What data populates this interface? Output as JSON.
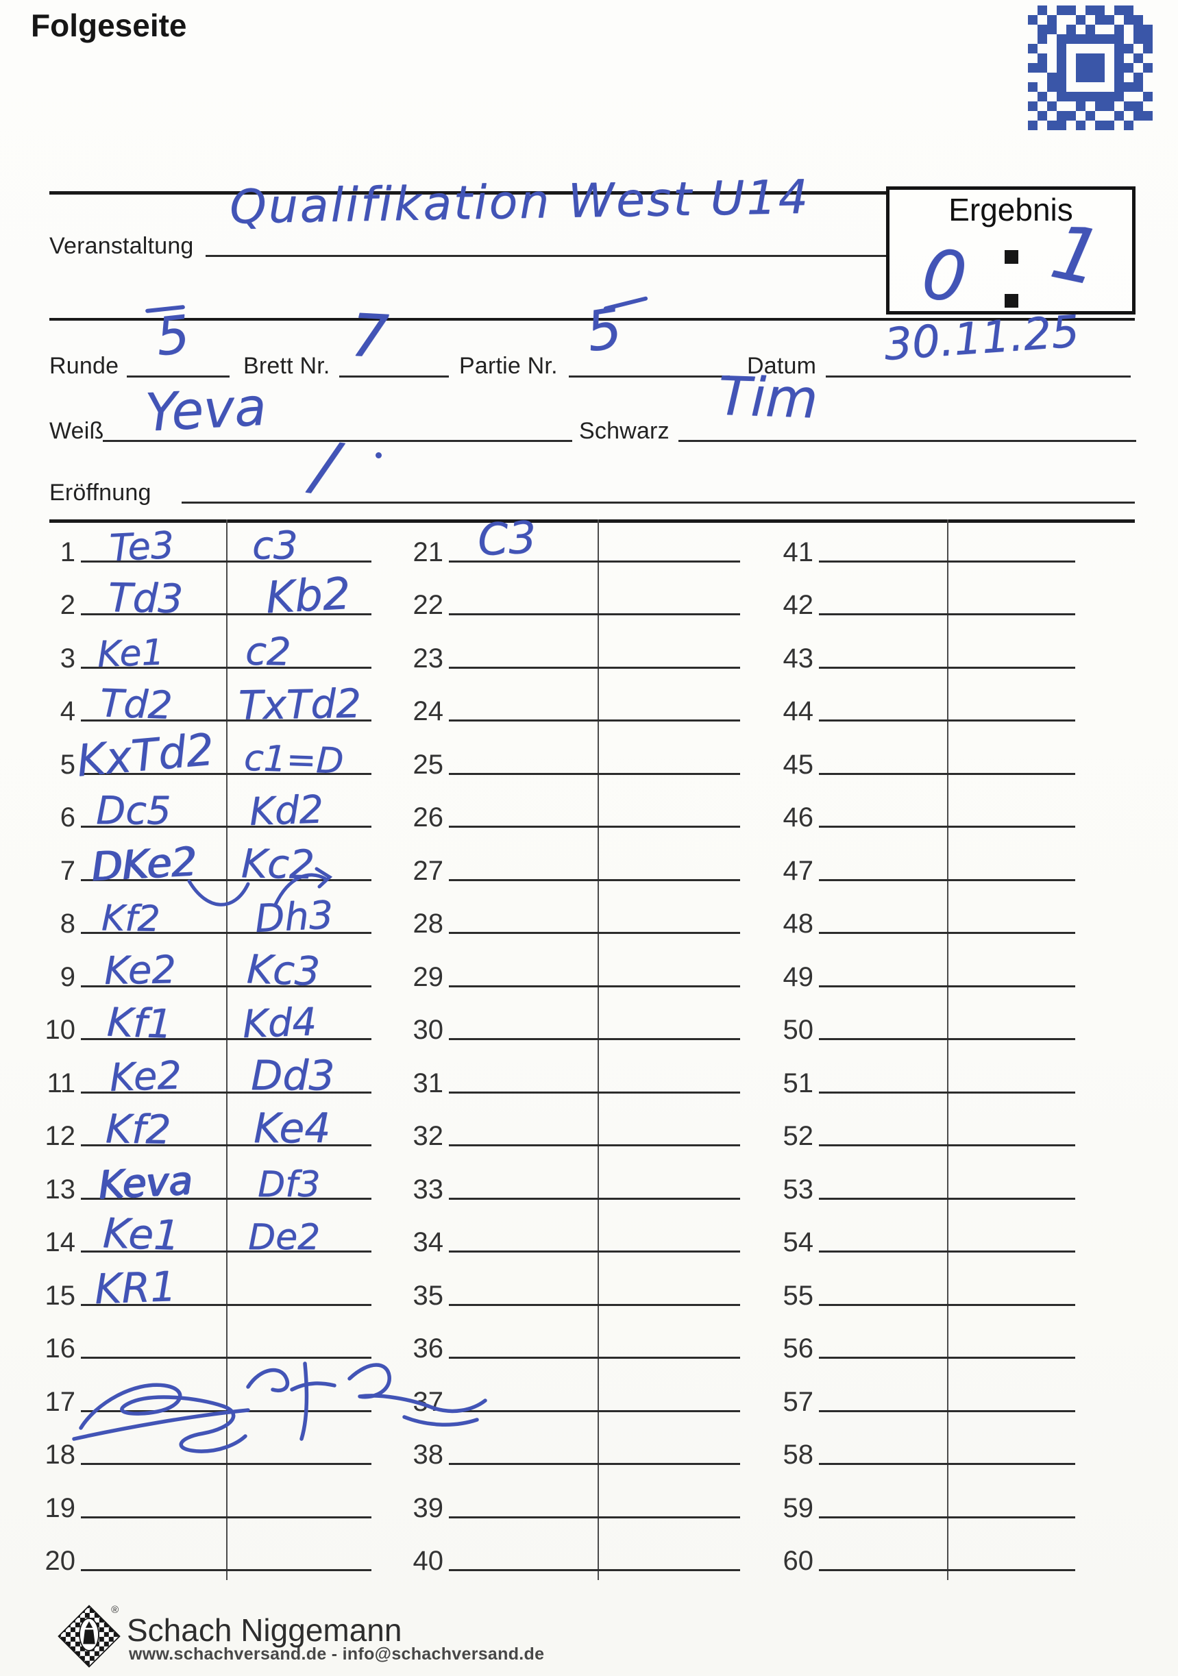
{
  "page": {
    "title": "Folgeseite"
  },
  "header": {
    "event_label": "Veranstaltung",
    "event_value": "Qualifikation West U14",
    "result_label": "Ergebnis",
    "result_white": "0",
    "result_black": "1",
    "round_label": "Runde",
    "round_value": "5",
    "board_label": "Brett Nr.",
    "board_value": "7",
    "game_label": "Partie Nr.",
    "game_value": "5",
    "date_label": "Datum",
    "date_value": "30.11.25",
    "white_label": "Weiß",
    "white_value": "Yeva",
    "black_label": "Schwarz",
    "black_value": "Tim",
    "opening_label": "Eröffnung",
    "opening_value": "/"
  },
  "scoresheet": {
    "columns": [
      {
        "start": 1,
        "rows": [
          {
            "no": "1",
            "white": "Te3",
            "black": "c3"
          },
          {
            "no": "2",
            "white": "Td3",
            "black": "Kb2"
          },
          {
            "no": "3",
            "white": "Ke1",
            "black": "c2"
          },
          {
            "no": "4",
            "white": "Td2",
            "black": "TxTd2"
          },
          {
            "no": "5",
            "white": "KxTd2",
            "black": "c1=D"
          },
          {
            "no": "6",
            "white": "Dc5",
            "black": "Kd2"
          },
          {
            "no": "7",
            "white": "DKe2",
            "black": "Kc2"
          },
          {
            "no": "8",
            "white": "Kf2",
            "black": "Dh3"
          },
          {
            "no": "9",
            "white": "Ke2",
            "black": "Kc3"
          },
          {
            "no": "10",
            "white": "Kf1",
            "black": "Kd4"
          },
          {
            "no": "11",
            "white": "Ke2",
            "black": "Dd3"
          },
          {
            "no": "12",
            "white": "Kf2",
            "black": "Ke4"
          },
          {
            "no": "13",
            "white": "Keva",
            "black": "Df3"
          },
          {
            "no": "14",
            "white": "Ke1",
            "black": "De2"
          },
          {
            "no": "15",
            "white": "KR1",
            "black": ""
          },
          {
            "no": "16",
            "white": "",
            "black": ""
          },
          {
            "no": "17",
            "white": "",
            "black": ""
          },
          {
            "no": "18",
            "white": "",
            "black": ""
          },
          {
            "no": "19",
            "white": "",
            "black": ""
          },
          {
            "no": "20",
            "white": "",
            "black": ""
          }
        ]
      },
      {
        "start": 21,
        "rows": [
          {
            "no": "21",
            "white": "C3",
            "black": ""
          },
          {
            "no": "22",
            "white": "",
            "black": ""
          },
          {
            "no": "23",
            "white": "",
            "black": ""
          },
          {
            "no": "24",
            "white": "",
            "black": ""
          },
          {
            "no": "25",
            "white": "",
            "black": ""
          },
          {
            "no": "26",
            "white": "",
            "black": ""
          },
          {
            "no": "27",
            "white": "",
            "black": ""
          },
          {
            "no": "28",
            "white": "",
            "black": ""
          },
          {
            "no": "29",
            "white": "",
            "black": ""
          },
          {
            "no": "30",
            "white": "",
            "black": ""
          },
          {
            "no": "31",
            "white": "",
            "black": ""
          },
          {
            "no": "32",
            "white": "",
            "black": ""
          },
          {
            "no": "33",
            "white": "",
            "black": ""
          },
          {
            "no": "34",
            "white": "",
            "black": ""
          },
          {
            "no": "35",
            "white": "",
            "black": ""
          },
          {
            "no": "36",
            "white": "",
            "black": ""
          },
          {
            "no": "37",
            "white": "",
            "black": ""
          },
          {
            "no": "38",
            "white": "",
            "black": ""
          },
          {
            "no": "39",
            "white": "",
            "black": ""
          },
          {
            "no": "40",
            "white": "",
            "black": ""
          }
        ]
      },
      {
        "start": 41,
        "rows": [
          {
            "no": "41",
            "white": "",
            "black": ""
          },
          {
            "no": "42",
            "white": "",
            "black": ""
          },
          {
            "no": "43",
            "white": "",
            "black": ""
          },
          {
            "no": "44",
            "white": "",
            "black": ""
          },
          {
            "no": "45",
            "white": "",
            "black": ""
          },
          {
            "no": "46",
            "white": "",
            "black": ""
          },
          {
            "no": "47",
            "white": "",
            "black": ""
          },
          {
            "no": "48",
            "white": "",
            "black": ""
          },
          {
            "no": "49",
            "white": "",
            "black": ""
          },
          {
            "no": "50",
            "white": "",
            "black": ""
          },
          {
            "no": "51",
            "white": "",
            "black": ""
          },
          {
            "no": "52",
            "white": "",
            "black": ""
          },
          {
            "no": "53",
            "white": "",
            "black": ""
          },
          {
            "no": "54",
            "white": "",
            "black": ""
          },
          {
            "no": "55",
            "white": "",
            "black": ""
          },
          {
            "no": "56",
            "white": "",
            "black": ""
          },
          {
            "no": "57",
            "white": "",
            "black": ""
          },
          {
            "no": "58",
            "white": "",
            "black": ""
          },
          {
            "no": "59",
            "white": "",
            "black": ""
          },
          {
            "no": "60",
            "white": "",
            "black": ""
          }
        ]
      }
    ]
  },
  "footer": {
    "brand": "Schach Niggemann",
    "contact": "www.schachversand.de - info@schachversand.de"
  },
  "colors": {
    "ink": "#4254b6",
    "qr": "#3a56a8",
    "line": "#2c2c2c"
  }
}
